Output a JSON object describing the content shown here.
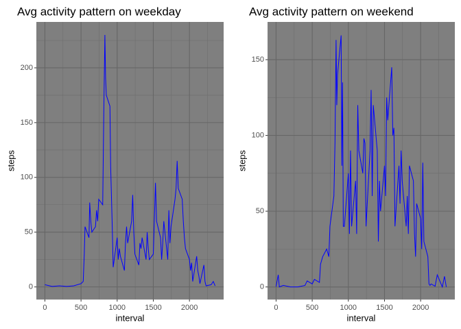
{
  "chart_data": [
    {
      "type": "line",
      "title": "Avg activity pattern on weekday",
      "x_label": "interval",
      "y_label": "steps",
      "color": "#0000ff",
      "grid": true,
      "x": [
        0,
        100,
        200,
        300,
        400,
        500,
        530,
        545,
        555,
        610,
        620,
        635,
        650,
        700,
        715,
        730,
        745,
        800,
        815,
        830,
        840,
        850,
        900,
        910,
        930,
        945,
        1000,
        1015,
        1030,
        1045,
        1100,
        1115,
        1130,
        1145,
        1200,
        1215,
        1230,
        1245,
        1300,
        1315,
        1330,
        1345,
        1400,
        1415,
        1430,
        1445,
        1500,
        1530,
        1545,
        1600,
        1615,
        1630,
        1645,
        1700,
        1715,
        1730,
        1745,
        1800,
        1815,
        1830,
        1845,
        1900,
        1915,
        1930,
        1945,
        2000,
        2015,
        2030,
        2045,
        2100,
        2115,
        2130,
        2145,
        2200,
        2215,
        2230,
        2300,
        2330,
        2355
      ],
      "values": [
        2,
        0.5,
        1,
        0.5,
        1,
        3,
        5,
        30,
        55,
        45,
        77,
        60,
        50,
        55,
        70,
        60,
        80,
        75,
        160,
        230,
        190,
        175,
        165,
        110,
        60,
        18,
        45,
        25,
        35,
        28,
        15,
        40,
        55,
        40,
        60,
        84,
        50,
        30,
        20,
        40,
        35,
        45,
        25,
        50,
        35,
        25,
        30,
        95,
        60,
        45,
        25,
        40,
        60,
        25,
        70,
        40,
        55,
        80,
        90,
        115,
        90,
        80,
        60,
        45,
        35,
        25,
        15,
        22,
        5,
        28,
        15,
        10,
        3,
        20,
        5,
        1,
        2,
        5,
        1
      ],
      "xlim": [
        -118,
        2473
      ],
      "ylim": [
        -11.5,
        241.9
      ],
      "xticks": [
        0,
        500,
        1000,
        1500,
        2000
      ],
      "yticks": [
        0,
        50,
        100,
        150,
        200
      ]
    },
    {
      "type": "line",
      "title": "Avg activity pattern on weekend",
      "x_label": "interval",
      "y_label": "steps",
      "color": "#0000ff",
      "grid": true,
      "x": [
        0,
        30,
        45,
        100,
        200,
        300,
        400,
        430,
        500,
        530,
        600,
        615,
        645,
        700,
        730,
        745,
        800,
        815,
        830,
        840,
        850,
        900,
        910,
        920,
        930,
        945,
        1000,
        1015,
        1030,
        1045,
        1100,
        1115,
        1130,
        1145,
        1200,
        1215,
        1230,
        1245,
        1300,
        1315,
        1330,
        1345,
        1400,
        1415,
        1430,
        1445,
        1500,
        1515,
        1530,
        1545,
        1600,
        1615,
        1630,
        1645,
        1700,
        1715,
        1730,
        1745,
        1800,
        1815,
        1830,
        1845,
        1900,
        1915,
        1930,
        1945,
        2000,
        2015,
        2030,
        2045,
        2100,
        2115,
        2130,
        2145,
        2200,
        2230,
        2300,
        2330,
        2355
      ],
      "values": [
        0.2,
        8,
        0,
        1,
        0,
        0,
        1,
        4,
        2,
        5,
        3,
        15,
        20,
        25,
        20,
        40,
        60,
        95,
        163,
        120,
        140,
        166,
        80,
        135,
        40,
        40,
        75,
        35,
        90,
        40,
        70,
        35,
        120,
        90,
        75,
        98,
        95,
        40,
        90,
        130,
        60,
        120,
        90,
        30,
        70,
        50,
        80,
        60,
        125,
        110,
        145,
        100,
        105,
        40,
        80,
        55,
        90,
        70,
        40,
        60,
        35,
        80,
        70,
        35,
        20,
        55,
        45,
        25,
        82,
        30,
        20,
        2,
        1,
        2,
        0.5,
        8,
        0,
        7,
        0
      ],
      "xlim": [
        -118,
        2473
      ],
      "ylim": [
        -8.3,
        174.9
      ],
      "xticks": [
        0,
        500,
        1000,
        1500,
        2000
      ],
      "yticks": [
        0,
        50,
        100,
        150
      ]
    }
  ]
}
